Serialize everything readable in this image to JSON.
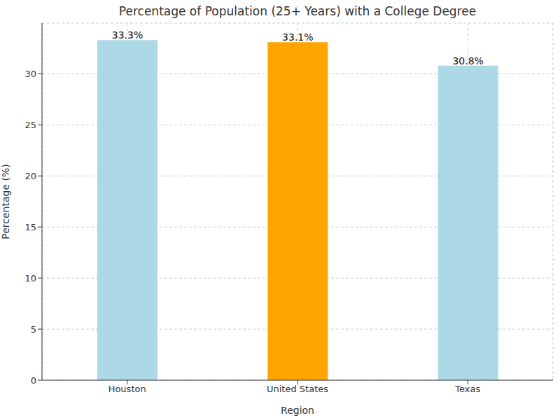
{
  "chart_data": {
    "type": "bar",
    "title": "Percentage of Population (25+ Years) with a College Degree",
    "xlabel": "Region",
    "ylabel": "Percentage (%)",
    "categories": [
      "Houston",
      "United States",
      "Texas"
    ],
    "values": [
      33.3,
      33.1,
      30.8
    ],
    "value_labels": [
      "33.3%",
      "33.1%",
      "30.8%"
    ],
    "colors": [
      "#add8e6",
      "#ffa500",
      "#add8e6"
    ],
    "ylim": [
      0,
      34.965
    ],
    "yticks": [
      0,
      5,
      10,
      15,
      20,
      25,
      30
    ],
    "grid": true,
    "data_labels": true
  }
}
